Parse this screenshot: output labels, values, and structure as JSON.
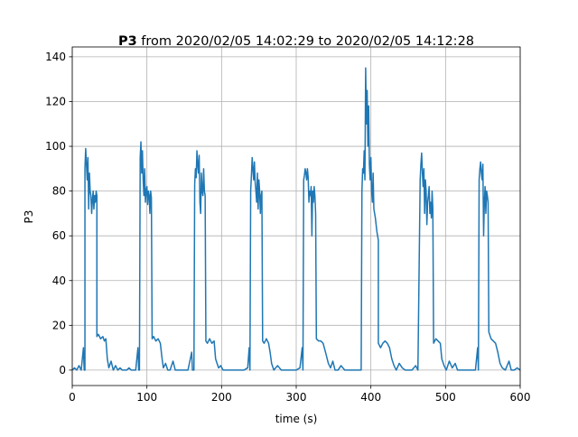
{
  "chart_data": {
    "type": "line",
    "title_name": "P3",
    "title": "from 2020/02/05 14:02:29 to 2020/02/05 14:12:28",
    "xlabel": "time (s)",
    "ylabel": "P3",
    "color": "#1f77b4",
    "grid": true,
    "xlim": [
      0,
      600
    ],
    "ylim": [
      -6.9,
      144.4
    ],
    "xticks": [
      0,
      100,
      200,
      300,
      400,
      500,
      600
    ],
    "yticks": [
      0,
      20,
      40,
      60,
      80,
      100,
      120,
      140
    ],
    "x": [
      0,
      3,
      6,
      9,
      12,
      15,
      16,
      17,
      17,
      18,
      20,
      21,
      22,
      23,
      24,
      25,
      26,
      27,
      28,
      29,
      30,
      31,
      32,
      33,
      33,
      35,
      38,
      41,
      43,
      45,
      47,
      49,
      52,
      55,
      58,
      61,
      64,
      67,
      70,
      73,
      76,
      79,
      82,
      85,
      88,
      89,
      90,
      91,
      92,
      93,
      94,
      95,
      96,
      97,
      98,
      99,
      100,
      101,
      102,
      103,
      104,
      105,
      106,
      107,
      109,
      112,
      115,
      118,
      120,
      122,
      125,
      128,
      131,
      135,
      138,
      141,
      145,
      150,
      155,
      160,
      161,
      163,
      164,
      165,
      166,
      167,
      168,
      169,
      170,
      171,
      172,
      173,
      174,
      175,
      176,
      177,
      178,
      179,
      181,
      184,
      187,
      190,
      192,
      194,
      196,
      199,
      202,
      206,
      210,
      215,
      220,
      225,
      230,
      235,
      237,
      238,
      239,
      240,
      241,
      242,
      243,
      244,
      245,
      246,
      247,
      248,
      249,
      250,
      251,
      252,
      253,
      254,
      255,
      257,
      260,
      263,
      265,
      267,
      270,
      275,
      280,
      285,
      290,
      295,
      300,
      305,
      308,
      309,
      310,
      311,
      312,
      313,
      314,
      315,
      316,
      317,
      318,
      319,
      320,
      321,
      322,
      323,
      324,
      325,
      326,
      327,
      330,
      333,
      336,
      340,
      343,
      346,
      349,
      352,
      356,
      360,
      365,
      370,
      375,
      380,
      385,
      387,
      388,
      389,
      390,
      391,
      392,
      393,
      394,
      395,
      396,
      397,
      398,
      399,
      400,
      401,
      402,
      403,
      404,
      405,
      406,
      407,
      408,
      409,
      410,
      410,
      413,
      416,
      419,
      422,
      425,
      428,
      431,
      434,
      438,
      442,
      446,
      450,
      455,
      460,
      463,
      466,
      467,
      468,
      469,
      470,
      471,
      472,
      473,
      474,
      475,
      476,
      477,
      478,
      479,
      480,
      481,
      482,
      483,
      484,
      487,
      490,
      493,
      495,
      498,
      501,
      505,
      509,
      513,
      516,
      520,
      525,
      530,
      535,
      540,
      543,
      544,
      545,
      546,
      547,
      548,
      549,
      550,
      551,
      552,
      553,
      554,
      555,
      556,
      557,
      558,
      561,
      564,
      567,
      570,
      573,
      576,
      580,
      585,
      588,
      592,
      596,
      600
    ],
    "values": [
      0,
      1,
      0,
      2,
      0,
      10,
      0,
      0,
      90,
      99,
      85,
      95,
      72,
      88,
      80,
      78,
      70,
      76,
      80,
      72,
      78,
      75,
      80,
      78,
      15,
      16,
      14,
      15,
      13,
      14,
      5,
      1,
      4,
      0,
      2,
      0,
      1,
      0,
      0,
      0,
      1,
      0,
      0,
      0,
      10,
      0,
      0,
      95,
      102,
      88,
      98,
      85,
      78,
      90,
      75,
      80,
      82,
      74,
      80,
      78,
      70,
      80,
      77,
      14,
      15,
      13,
      14,
      12,
      6,
      1,
      3,
      0,
      0,
      4,
      0,
      0,
      0,
      0,
      0,
      8,
      0,
      0,
      83,
      90,
      86,
      98,
      92,
      88,
      96,
      75,
      70,
      88,
      80,
      78,
      90,
      80,
      78,
      13,
      12,
      14,
      12,
      13,
      5,
      3,
      1,
      2,
      0,
      0,
      0,
      0,
      0,
      0,
      0,
      1,
      10,
      0,
      80,
      87,
      95,
      90,
      85,
      93,
      84,
      80,
      75,
      88,
      72,
      85,
      80,
      70,
      78,
      80,
      13,
      12,
      14,
      12,
      8,
      3,
      0,
      2,
      0,
      0,
      0,
      0,
      0,
      1,
      10,
      0,
      85,
      87,
      90,
      88,
      85,
      90,
      86,
      75,
      80,
      78,
      82,
      60,
      80,
      75,
      82,
      78,
      70,
      14,
      13,
      13,
      12,
      7,
      3,
      1,
      4,
      0,
      0,
      2,
      0,
      0,
      0,
      0,
      0,
      0,
      80,
      90,
      88,
      98,
      85,
      135,
      110,
      125,
      100,
      118,
      92,
      85,
      95,
      80,
      75,
      88,
      72,
      70,
      68,
      65,
      62,
      60,
      58,
      12,
      10,
      12,
      13,
      12,
      10,
      5,
      2,
      0,
      3,
      1,
      0,
      0,
      0,
      2,
      0,
      85,
      92,
      97,
      88,
      82,
      90,
      70,
      85,
      80,
      65,
      75,
      78,
      82,
      70,
      75,
      68,
      80,
      72,
      12,
      14,
      13,
      12,
      5,
      2,
      0,
      4,
      1,
      3,
      0,
      0,
      0,
      0,
      0,
      0,
      10,
      0,
      85,
      90,
      93,
      88,
      85,
      92,
      60,
      75,
      82,
      70,
      80,
      78,
      75,
      17,
      14,
      13,
      12,
      8,
      3,
      1,
      0,
      4,
      0,
      0,
      1,
      0
    ]
  }
}
